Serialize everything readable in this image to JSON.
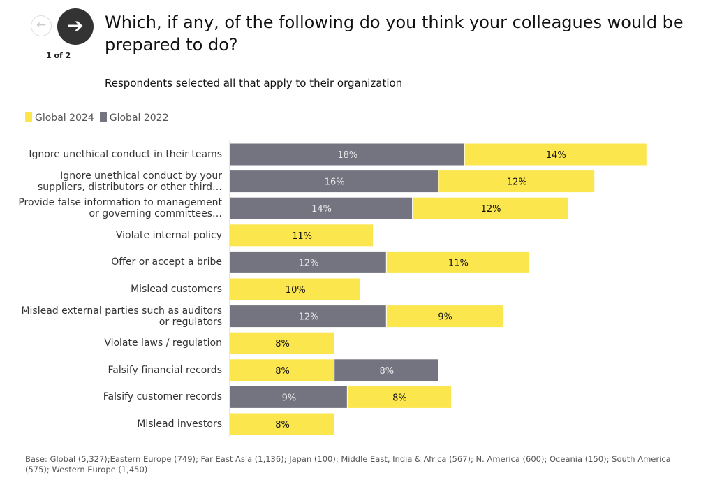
{
  "nav": {
    "prev_icon": "arrow-left-icon",
    "next_icon": "arrow-right-icon",
    "pager": "1 of 2"
  },
  "title": "Which, if any, of the following do you think your colleagues would be prepared to do?",
  "subtitle": "Respondents selected all that apply to their organization",
  "footnote": "Base: Global (5,327);Eastern Europe (749); Far East Asia (1,136); Japan (100); Middle East, India & Africa (567); N. America (600); Oceania (150); South America (575); Western Europe (1,450)",
  "chart_data": {
    "type": "bar",
    "orientation": "horizontal-stacked",
    "legend": [
      {
        "name": "Global 2024",
        "color": "#fbe64d"
      },
      {
        "name": "Global 2022",
        "color": "#747480"
      }
    ],
    "legend_position": "top-left",
    "categories": [
      "Ignore unethical conduct in their teams",
      "Ignore unethical conduct by your suppliers, distributors or other third…",
      "Provide false information to management or governing committees…",
      "Violate internal policy",
      "Offer or accept a bribe",
      "Mislead customers",
      "Mislead external parties such as auditors or regulators",
      "Violate laws / regulation",
      "Falsify financial records",
      "Falsify customer records",
      "Mislead investors"
    ],
    "rows": [
      [
        {
          "series": "Global 2022",
          "value": 18
        },
        {
          "series": "Global 2024",
          "value": 14
        }
      ],
      [
        {
          "series": "Global 2022",
          "value": 16
        },
        {
          "series": "Global 2024",
          "value": 12
        }
      ],
      [
        {
          "series": "Global 2022",
          "value": 14
        },
        {
          "series": "Global 2024",
          "value": 12
        }
      ],
      [
        {
          "series": "Global 2024",
          "value": 11
        }
      ],
      [
        {
          "series": "Global 2022",
          "value": 12
        },
        {
          "series": "Global 2024",
          "value": 11
        }
      ],
      [
        {
          "series": "Global 2024",
          "value": 10
        }
      ],
      [
        {
          "series": "Global 2022",
          "value": 12
        },
        {
          "series": "Global 2024",
          "value": 9
        }
      ],
      [
        {
          "series": "Global 2024",
          "value": 8
        }
      ],
      [
        {
          "series": "Global 2024",
          "value": 8
        },
        {
          "series": "Global 2022",
          "value": 8
        }
      ],
      [
        {
          "series": "Global 2022",
          "value": 9
        },
        {
          "series": "Global 2024",
          "value": 8
        }
      ],
      [
        {
          "series": "Global 2024",
          "value": 8
        }
      ]
    ],
    "value_suffix": "%"
  }
}
